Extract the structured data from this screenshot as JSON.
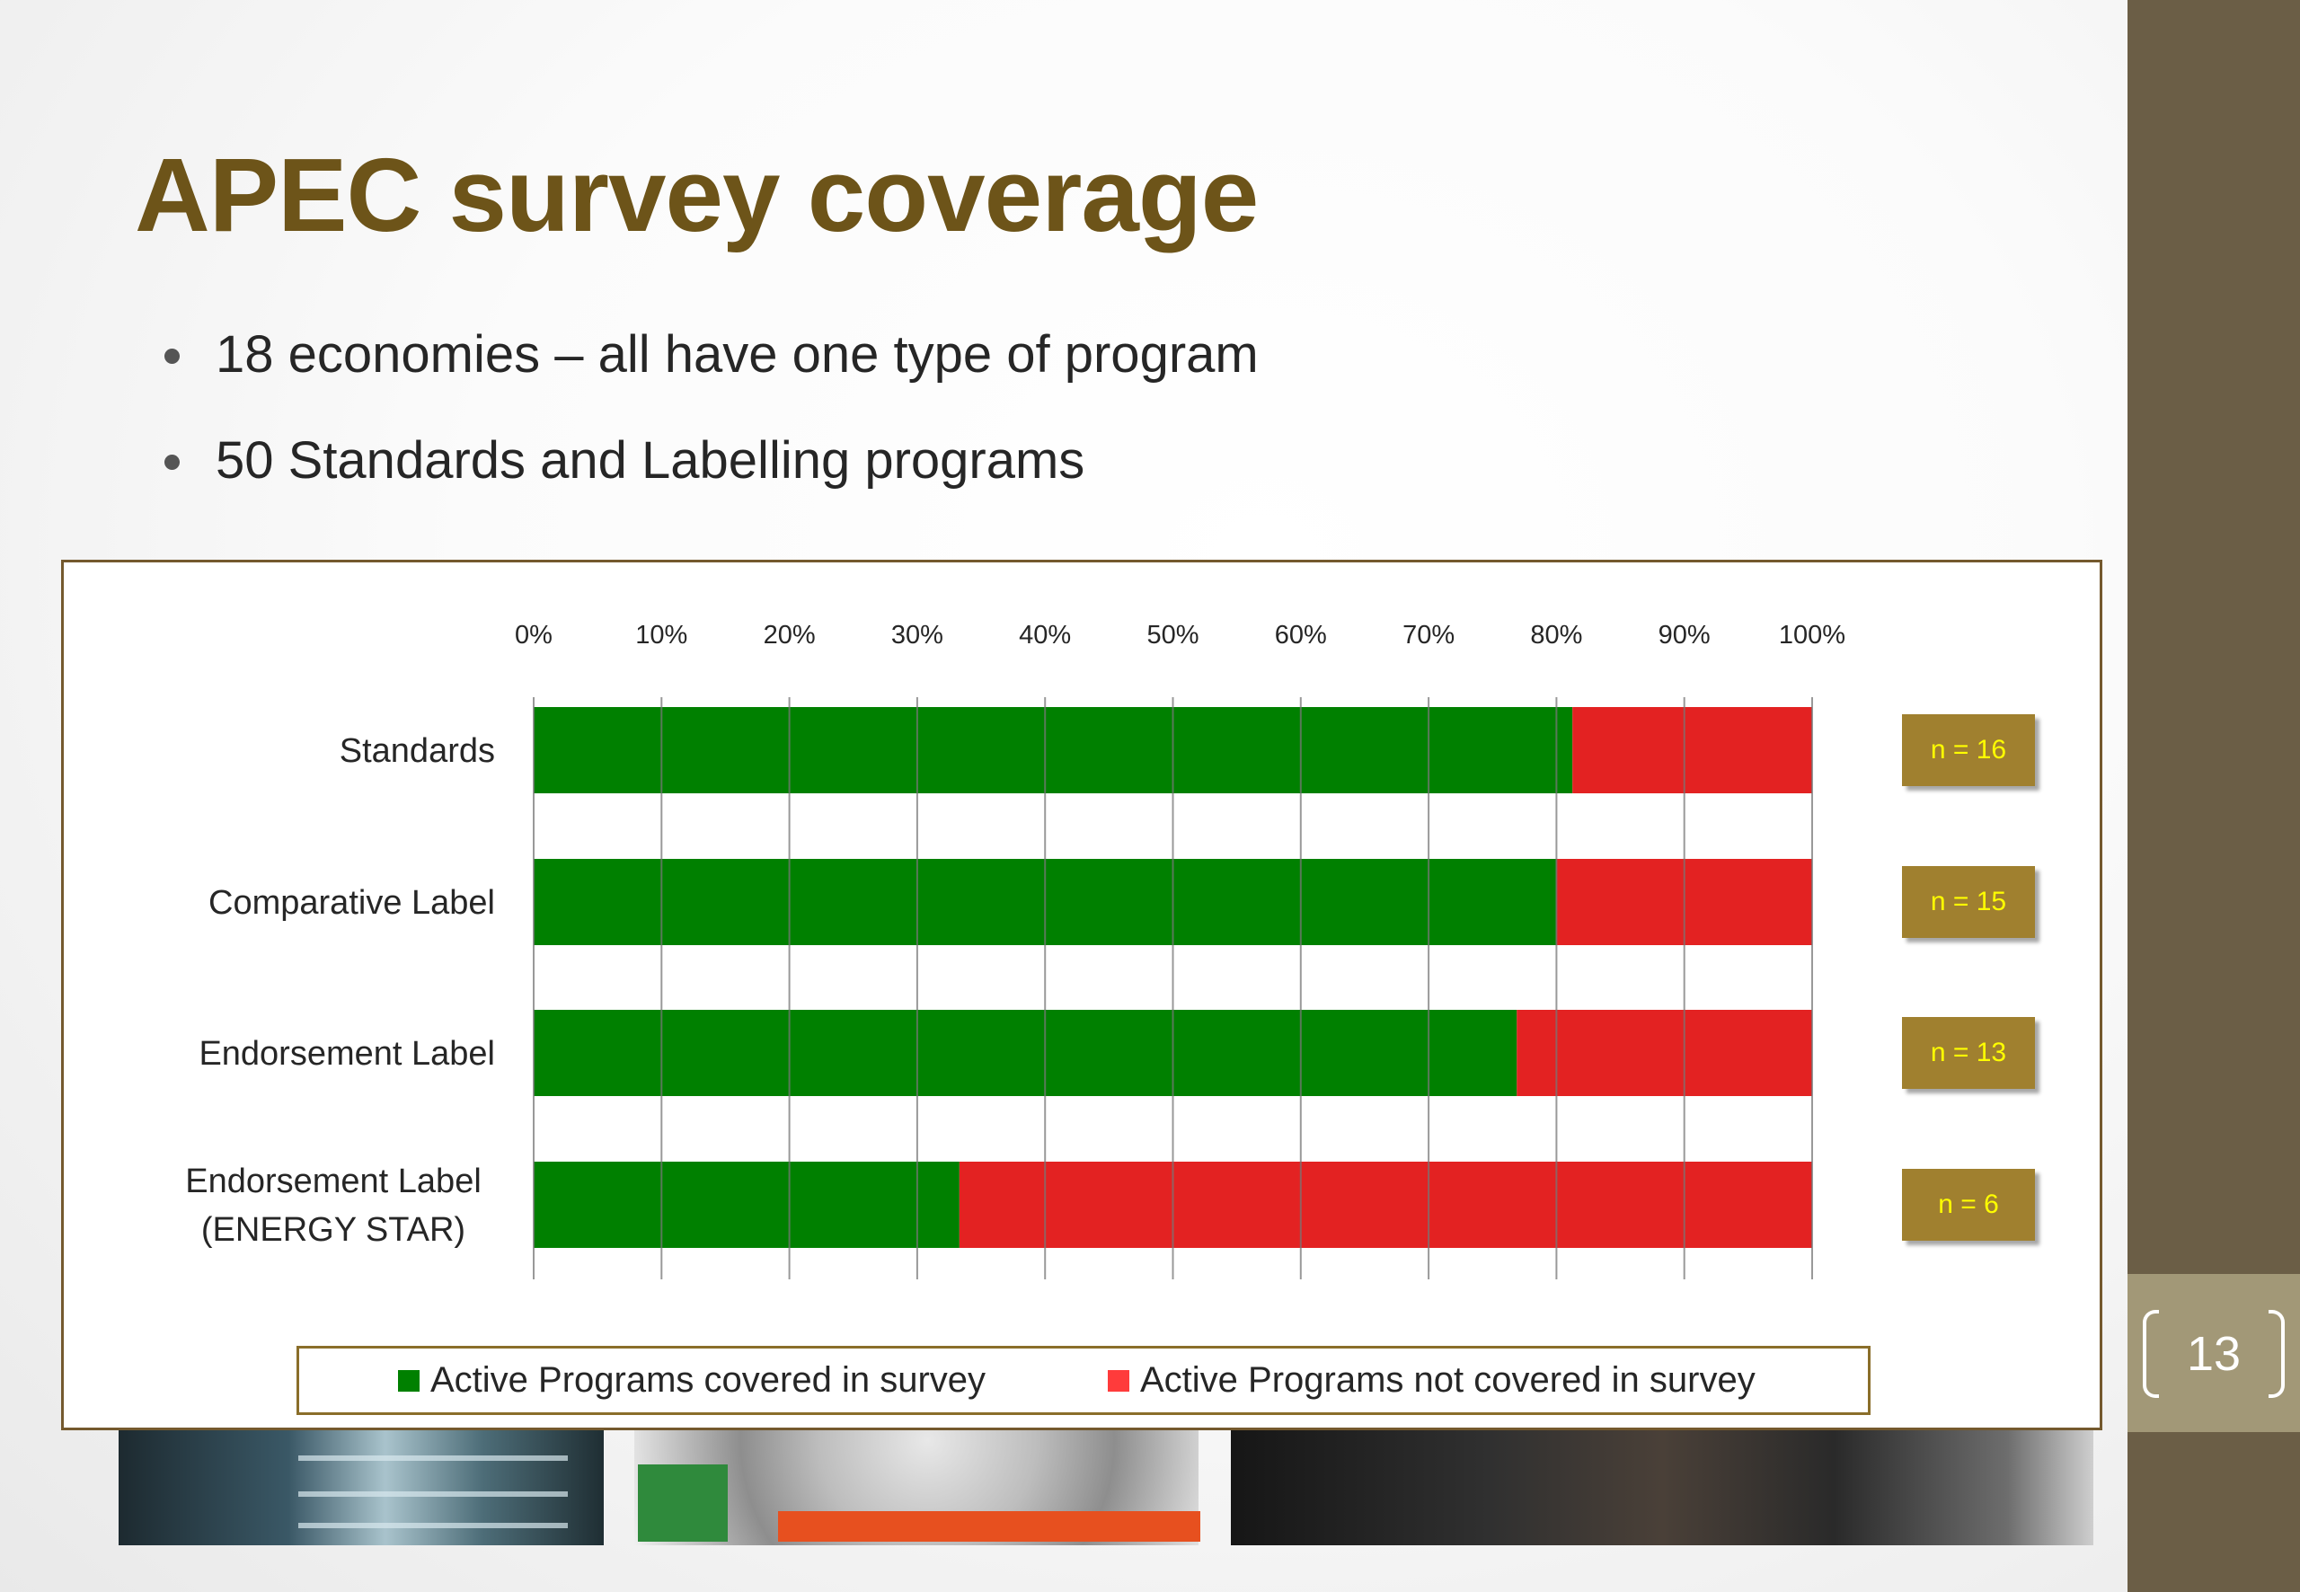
{
  "slide": {
    "title": "APEC survey coverage",
    "bullets": [
      "18 economies – all have one type of program",
      "50 Standards and Labelling programs"
    ],
    "page_number": "13"
  },
  "theme": {
    "title_color": "#6d5419",
    "sidebar_color": "#6b5e46",
    "page_box_color": "#a29877",
    "covered_color": "#008000",
    "not_covered_color": "#e32222",
    "n_box_color": "#a0802f",
    "n_text_color": "#ffff00"
  },
  "chart_data": {
    "type": "bar",
    "orientation": "horizontal",
    "stacked": "100%",
    "categories": [
      "Standards",
      "Comparative Label",
      "Endorsement Label",
      "Endorsement Label\n(ENERGY STAR)"
    ],
    "category_lines": [
      [
        "Standards"
      ],
      [
        "Comparative Label"
      ],
      [
        "Endorsement Label"
      ],
      [
        "Endorsement Label",
        "(ENERGY STAR)"
      ]
    ],
    "series": [
      {
        "name": "Active Programs covered in survey",
        "color": "#008000",
        "values": [
          0.8125,
          0.8,
          0.769,
          0.333
        ]
      },
      {
        "name": "Active Programs not covered in survey",
        "color": "#e32222",
        "values": [
          0.1875,
          0.2,
          0.231,
          0.667
        ]
      }
    ],
    "n_labels": [
      "n = 16",
      "n = 15",
      "n = 13",
      "n = 6"
    ],
    "xticks": [
      "0%",
      "10%",
      "20%",
      "30%",
      "40%",
      "50%",
      "60%",
      "70%",
      "80%",
      "90%",
      "100%"
    ],
    "xlim": [
      0,
      1
    ],
    "x_axis_position": "top",
    "grid": true,
    "legend_position": "bottom"
  }
}
